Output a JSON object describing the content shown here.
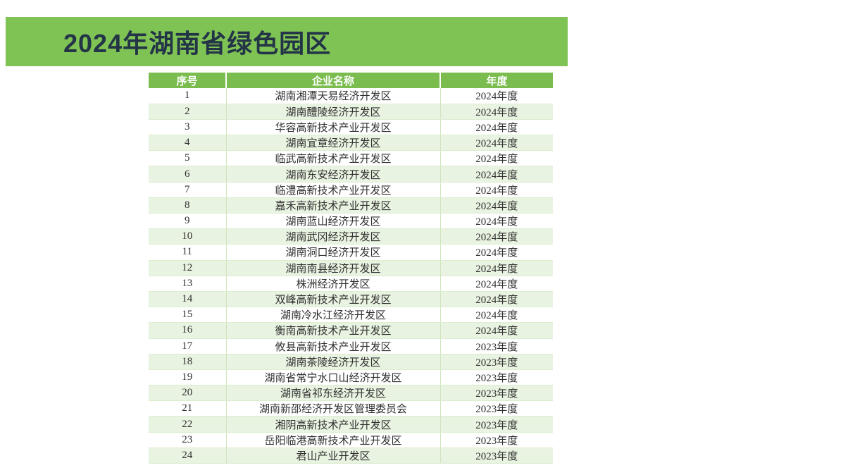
{
  "banner": {
    "title": "2024年湖南省绿色园区",
    "bg_color": "#80C355",
    "text_color": "#233447"
  },
  "table": {
    "headers": [
      "序号",
      "企业名称",
      "年度"
    ],
    "header_bg": "#7ABD4E",
    "stripe_bg": "#E9F3E1",
    "rows": [
      [
        "1",
        "湖南湘潭天易经济开发区",
        "2024年度"
      ],
      [
        "2",
        "湖南醴陵经济开发区",
        "2024年度"
      ],
      [
        "3",
        "华容高新技术产业开发区",
        "2024年度"
      ],
      [
        "4",
        "湖南宜章经济开发区",
        "2024年度"
      ],
      [
        "5",
        "临武高新技术产业开发区",
        "2024年度"
      ],
      [
        "6",
        "湖南东安经济开发区",
        "2024年度"
      ],
      [
        "7",
        "临澧高新技术产业开发区",
        "2024年度"
      ],
      [
        "8",
        "嘉禾高新技术产业开发区",
        "2024年度"
      ],
      [
        "9",
        "湖南蓝山经济开发区",
        "2024年度"
      ],
      [
        "10",
        "湖南武冈经济开发区",
        "2024年度"
      ],
      [
        "11",
        "湖南洞口经济开发区",
        "2024年度"
      ],
      [
        "12",
        "湖南南县经济开发区",
        "2024年度"
      ],
      [
        "13",
        "株洲经济开发区",
        "2024年度"
      ],
      [
        "14",
        "双峰高新技术产业开发区",
        "2024年度"
      ],
      [
        "15",
        "湖南冷水江经济开发区",
        "2024年度"
      ],
      [
        "16",
        "衡南高新技术产业开发区",
        "2024年度"
      ],
      [
        "17",
        "攸县高新技术产业开发区",
        "2023年度"
      ],
      [
        "18",
        "湖南茶陵经济开发区",
        "2023年度"
      ],
      [
        "19",
        "湖南省常宁水口山经济开发区",
        "2023年度"
      ],
      [
        "20",
        "湖南省祁东经济开发区",
        "2023年度"
      ],
      [
        "21",
        "湖南新邵经济开发区管理委员会",
        "2023年度"
      ],
      [
        "22",
        "湘阴高新技术产业开发区",
        "2023年度"
      ],
      [
        "23",
        "岳阳临港高新技术产业开发区",
        "2023年度"
      ],
      [
        "24",
        "君山产业开发区",
        "2023年度"
      ]
    ]
  }
}
